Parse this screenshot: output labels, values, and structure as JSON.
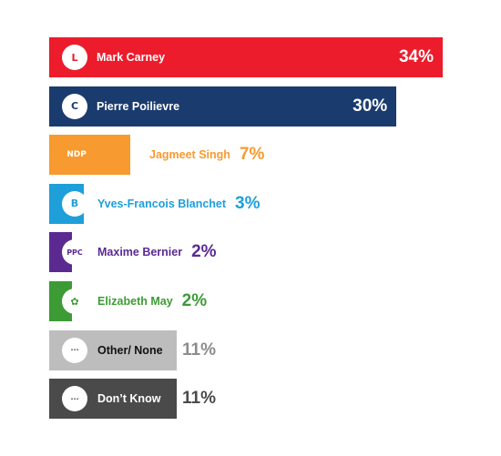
{
  "chart_data": {
    "type": "bar",
    "orientation": "horizontal",
    "categories": [
      "Mark Carney",
      "Pierre Poilievre",
      "Jagmeet Singh",
      "Yves-Francois Blanchet",
      "Maxime Bernier",
      "Elizabeth May",
      "Other/ None",
      "Don’t Know"
    ],
    "values": [
      34,
      30,
      7,
      3,
      2,
      2,
      11,
      11
    ],
    "value_labels": [
      "34%",
      "30%",
      "7%",
      "3%",
      "2%",
      "2%",
      "11%",
      "11%"
    ],
    "xlim": [
      0,
      34
    ],
    "grid": false,
    "bars": [
      {
        "label": "Mark Carney",
        "value": 34,
        "value_label": "34%",
        "color": "#EC1C2C",
        "icon": "liberal-maple-leaf-icon",
        "logo_glyph": "L",
        "logo_color": "#EC1C2C"
      },
      {
        "label": "Pierre Poilievre",
        "value": 30,
        "value_label": "30%",
        "color": "#1A3B6E",
        "icon": "conservative-c-icon",
        "logo_glyph": "C",
        "logo_color": "#1A3B6E"
      },
      {
        "label": "Jagmeet Singh",
        "value": 7,
        "value_label": "7%",
        "color": "#F79A30",
        "icon": "ndp-logo-icon",
        "logo_glyph": "NDP",
        "logo_color": "#F79A30"
      },
      {
        "label": "Yves-Francois Blanchet",
        "value": 3,
        "value_label": "3%",
        "color": "#1E9FD9",
        "icon": "bloc-quebecois-icon",
        "logo_glyph": "B",
        "logo_color": "#1E9FD9"
      },
      {
        "label": "Maxime Bernier",
        "value": 2,
        "value_label": "2%",
        "color": "#5B2A91",
        "icon": "ppc-logo-icon",
        "logo_glyph": "PPC",
        "logo_color": "#5B2A91"
      },
      {
        "label": "Elizabeth May",
        "value": 2,
        "value_label": "2%",
        "color": "#3D9B35",
        "icon": "green-party-flower-icon",
        "logo_glyph": "✿",
        "logo_color": "#3D9B35"
      },
      {
        "label": "Other/ None",
        "value": 11,
        "value_label": "11%",
        "color": "#BDBDBD",
        "icon": "ellipsis-icon",
        "logo_glyph": "···",
        "logo_color": "#444444"
      },
      {
        "label": "Don’t Know",
        "value": 11,
        "value_label": "11%",
        "color": "#4A4A4A",
        "icon": "ellipsis-icon",
        "logo_glyph": "···",
        "logo_color": "#444444"
      }
    ]
  }
}
